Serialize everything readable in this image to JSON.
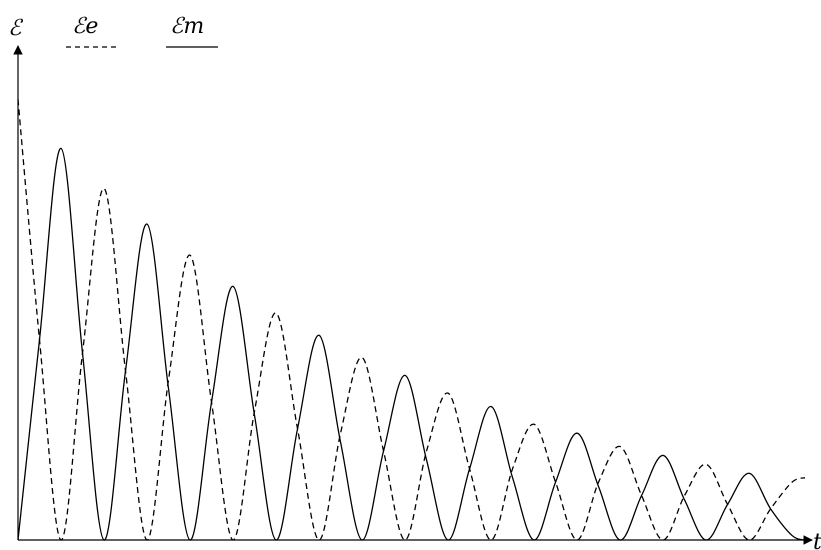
{
  "chart_data": {
    "type": "line",
    "ylabel": "ℰ",
    "xlabel": "t",
    "grid": false,
    "legend_placement": "top",
    "xlim": [
      0,
      18.3
    ],
    "ylim": [
      0,
      1
    ],
    "series": [
      {
        "name": "ℰe",
        "style": "dashed",
        "color": "#000000",
        "x": [
          0,
          0.5,
          1,
          1.5,
          2,
          2.5,
          3,
          3.5,
          4,
          4.5,
          5,
          5.5,
          6,
          6.5,
          7,
          7.5,
          8,
          8.5,
          9,
          9.5,
          10,
          10.5,
          11,
          11.5,
          12,
          12.5,
          13,
          13.5,
          14,
          14.5,
          15,
          15.5,
          16,
          16.5,
          17,
          17.5,
          18,
          18.3
        ],
        "y": [
          0.99,
          0.45,
          0.0,
          0.42,
          0.79,
          0.38,
          0.0,
          0.36,
          0.64,
          0.31,
          0.0,
          0.29,
          0.51,
          0.25,
          0.0,
          0.24,
          0.41,
          0.2,
          0.0,
          0.2,
          0.33,
          0.16,
          0.0,
          0.16,
          0.26,
          0.13,
          0.0,
          0.13,
          0.21,
          0.1,
          0.0,
          0.1,
          0.17,
          0.08,
          0.0,
          0.07,
          0.13,
          0.14
        ]
      },
      {
        "name": "ℰm",
        "style": "solid",
        "color": "#000000",
        "x": [
          0,
          0.5,
          1,
          1.5,
          2,
          2.5,
          3,
          3.5,
          4,
          4.5,
          5,
          5.5,
          6,
          6.5,
          7,
          7.5,
          8,
          8.5,
          9,
          9.5,
          10,
          10.5,
          11,
          11.5,
          12,
          12.5,
          13,
          13.5,
          14,
          14.5,
          15,
          15.5,
          16,
          16.5,
          17,
          17.5,
          18,
          18.3
        ],
        "y": [
          0.0,
          0.45,
          0.88,
          0.42,
          0.0,
          0.38,
          0.71,
          0.34,
          0.0,
          0.31,
          0.57,
          0.28,
          0.0,
          0.25,
          0.46,
          0.22,
          0.0,
          0.2,
          0.37,
          0.18,
          0.0,
          0.16,
          0.3,
          0.14,
          0.0,
          0.13,
          0.24,
          0.12,
          0.0,
          0.1,
          0.19,
          0.09,
          0.0,
          0.08,
          0.15,
          0.07,
          0.01,
          0.0
        ]
      }
    ]
  }
}
